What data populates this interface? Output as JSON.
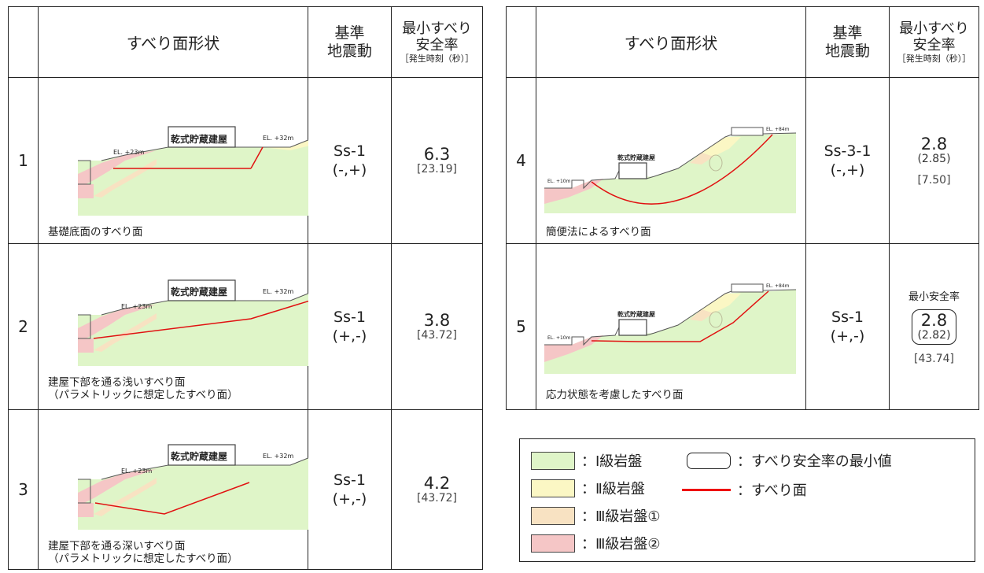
{
  "headers": {
    "shape": "すべり面形状",
    "eq_line1": "基準",
    "eq_line2": "地震動",
    "sf_line1": "最小すべり",
    "sf_line2": "安全率",
    "sf_sub": "［発生時刻（秒）］"
  },
  "diagram_labels": {
    "building": "乾式貯蔵建屋",
    "el23": "EL. +23m",
    "el32": "EL. +32m",
    "el10": "EL. +10m",
    "el84": "EL. +84m"
  },
  "rows": [
    {
      "no": "1",
      "caption1": "基礎底面のすべり面",
      "caption2": "",
      "eq1": "Ss-1",
      "eq2": "(-,+)",
      "sf": "6.3",
      "sf_sub": "",
      "time": "[23.19]"
    },
    {
      "no": "2",
      "caption1": "建屋下部を通る浅いすべり面",
      "caption2": "（パラメトリックに想定したすべり面）",
      "eq1": "Ss-1",
      "eq2": "(+,-)",
      "sf": "3.8",
      "sf_sub": "",
      "time": "[43.72]"
    },
    {
      "no": "3",
      "caption1": "建屋下部を通る深いすべり面",
      "caption2": "（パラメトリックに想定したすべり面）",
      "eq1": "Ss-1",
      "eq2": "(+,-)",
      "sf": "4.2",
      "sf_sub": "",
      "time": "[43.72]"
    },
    {
      "no": "4",
      "caption1": "簡便法によるすべり面",
      "caption2": "",
      "eq1": "Ss-3-1",
      "eq2": "(-,+)",
      "sf": "2.8",
      "sf_sub": "(2.85)",
      "time": "[7.50]"
    },
    {
      "no": "5",
      "caption1": "応力状態を考慮したすべり面",
      "caption2": "",
      "eq1": "Ss-1",
      "eq2": "(+,-)",
      "sf": "2.8",
      "sf_sub": "(2.82)",
      "time": "[43.74]",
      "label": "最小安全率"
    }
  ],
  "legend": {
    "class1": "：Ⅰ級岩盤",
    "class2": "：Ⅱ級岩盤",
    "class3a": "：Ⅲ級岩盤①",
    "class3b": "：Ⅲ級岩盤②",
    "min_value": "：すべり安全率の最小値",
    "slip_surface": "：すべり面"
  },
  "colors": {
    "class1": "#dff5c8",
    "class2": "#fbf7c4",
    "class3a": "#f8e2c2",
    "class3b": "#f5c6c6",
    "slip": "#e11111"
  }
}
